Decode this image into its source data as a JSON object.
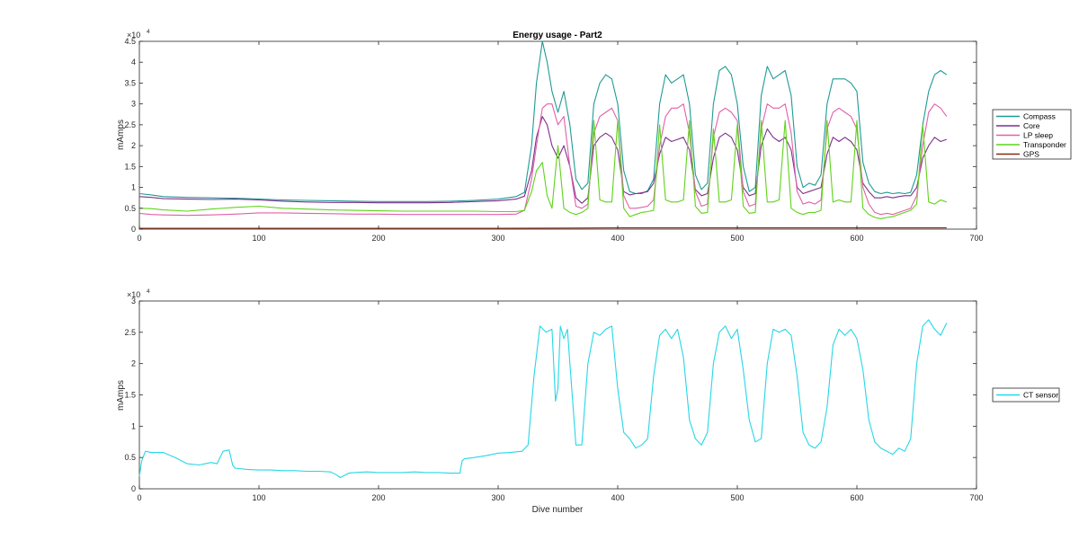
{
  "chart_data": [
    {
      "type": "line",
      "title": "Energy usage - Part2",
      "xlabel": "",
      "ylabel": "mAmps",
      "xlim": [
        0,
        700
      ],
      "ylim": [
        0,
        45000
      ],
      "xticks": [
        0,
        100,
        200,
        300,
        400,
        500,
        600,
        700
      ],
      "xtick_labels": [
        "0",
        "100",
        "200",
        "300",
        "400",
        "500",
        "600",
        "700"
      ],
      "yticks": [
        0,
        5000,
        10000,
        15000,
        20000,
        25000,
        30000,
        35000,
        40000,
        45000
      ],
      "ytick_labels": [
        "0",
        "0.5",
        "1",
        "1.5",
        "2",
        "2.5",
        "3",
        "3.5",
        "4",
        "4.5"
      ],
      "exponent_label": "×10",
      "exponent_power": "4",
      "legend_position": "outside-right",
      "series": [
        {
          "name": "Compass",
          "color": "#1f9a94",
          "x": [
            0,
            10,
            20,
            40,
            60,
            80,
            100,
            120,
            140,
            160,
            180,
            200,
            220,
            240,
            260,
            280,
            300,
            315,
            322,
            328,
            332,
            337,
            341,
            345,
            350,
            355,
            360,
            365,
            370,
            375,
            380,
            385,
            390,
            395,
            400,
            405,
            410,
            415,
            420,
            425,
            430,
            435,
            440,
            445,
            450,
            455,
            460,
            465,
            470,
            475,
            480,
            485,
            490,
            495,
            500,
            505,
            510,
            515,
            520,
            525,
            530,
            535,
            540,
            545,
            550,
            555,
            560,
            565,
            570,
            575,
            580,
            585,
            590,
            595,
            600,
            605,
            610,
            615,
            620,
            625,
            630,
            635,
            640,
            645,
            650,
            655,
            660,
            665,
            670,
            675
          ],
          "y": [
            8500,
            8200,
            7800,
            7600,
            7500,
            7400,
            7200,
            7000,
            6900,
            6800,
            6700,
            6600,
            6600,
            6600,
            6700,
            6900,
            7200,
            7800,
            8800,
            20000,
            35000,
            45000,
            40000,
            33000,
            28000,
            33000,
            25000,
            12000,
            9500,
            11000,
            30000,
            35000,
            37000,
            36000,
            30000,
            14000,
            9000,
            8500,
            8500,
            9200,
            12000,
            30000,
            37000,
            35000,
            36000,
            37000,
            30000,
            13000,
            9500,
            11000,
            30000,
            38000,
            39000,
            37000,
            30000,
            15000,
            9000,
            10000,
            32000,
            39000,
            36000,
            37000,
            38000,
            32000,
            15000,
            10000,
            11000,
            10500,
            13000,
            30000,
            36000,
            36000,
            36000,
            35000,
            33000,
            16000,
            11000,
            9000,
            8500,
            8800,
            8500,
            8700,
            8500,
            8800,
            13000,
            25000,
            33000,
            37000,
            38000,
            37000
          ]
        },
        {
          "name": "Core",
          "color": "#7e2f8e",
          "x": [
            0,
            10,
            20,
            40,
            60,
            80,
            100,
            120,
            140,
            160,
            180,
            200,
            220,
            240,
            260,
            280,
            300,
            315,
            322,
            328,
            332,
            337,
            341,
            345,
            350,
            355,
            360,
            365,
            370,
            375,
            380,
            385,
            390,
            395,
            400,
            405,
            410,
            415,
            420,
            425,
            430,
            435,
            440,
            445,
            450,
            455,
            460,
            465,
            470,
            475,
            480,
            485,
            490,
            495,
            500,
            505,
            510,
            515,
            520,
            525,
            530,
            535,
            540,
            545,
            550,
            555,
            560,
            565,
            570,
            575,
            580,
            585,
            590,
            595,
            600,
            605,
            610,
            615,
            620,
            625,
            630,
            635,
            640,
            645,
            650,
            655,
            660,
            665,
            670,
            675
          ],
          "y": [
            7800,
            7600,
            7300,
            7200,
            7100,
            7200,
            7000,
            6700,
            6500,
            6400,
            6400,
            6300,
            6300,
            6300,
            6400,
            6600,
            6800,
            7200,
            7900,
            14000,
            22000,
            27000,
            25000,
            20000,
            17000,
            20000,
            15000,
            7500,
            6200,
            7500,
            20000,
            22000,
            23000,
            22000,
            19000,
            9000,
            8200,
            8500,
            8700,
            9000,
            11000,
            18000,
            22000,
            21000,
            21500,
            22000,
            19000,
            9500,
            8000,
            8500,
            17000,
            22000,
            23000,
            22000,
            19000,
            10000,
            8000,
            8500,
            20000,
            24000,
            22000,
            21000,
            22000,
            19000,
            10000,
            8500,
            9000,
            9500,
            10000,
            18000,
            22000,
            21000,
            22000,
            21000,
            19000,
            11000,
            9000,
            7500,
            7500,
            7800,
            7500,
            7800,
            8000,
            8000,
            10000,
            17000,
            20000,
            22000,
            21000,
            21500
          ]
        },
        {
          "name": "LP sleep",
          "color": "#e060a8",
          "x": [
            0,
            10,
            20,
            40,
            60,
            80,
            100,
            120,
            140,
            160,
            180,
            200,
            220,
            240,
            260,
            280,
            300,
            315,
            322,
            328,
            332,
            337,
            341,
            345,
            350,
            355,
            360,
            365,
            370,
            375,
            380,
            385,
            390,
            395,
            400,
            405,
            410,
            415,
            420,
            425,
            430,
            435,
            440,
            445,
            450,
            455,
            460,
            465,
            470,
            475,
            480,
            485,
            490,
            495,
            500,
            505,
            510,
            515,
            520,
            525,
            530,
            535,
            540,
            545,
            550,
            555,
            560,
            565,
            570,
            575,
            580,
            585,
            590,
            595,
            600,
            605,
            610,
            615,
            620,
            625,
            630,
            635,
            640,
            645,
            650,
            655,
            660,
            665,
            670,
            675
          ],
          "y": [
            3800,
            3500,
            3400,
            3300,
            3400,
            3600,
            3900,
            3900,
            3800,
            3700,
            3600,
            3600,
            3500,
            3500,
            3500,
            3500,
            3500,
            3600,
            4500,
            12000,
            20000,
            29000,
            30000,
            30000,
            25000,
            27000,
            15000,
            5500,
            5000,
            6000,
            23000,
            27000,
            28000,
            29000,
            26000,
            8000,
            5000,
            5000,
            5200,
            5500,
            7000,
            20000,
            27000,
            29000,
            29000,
            30000,
            23000,
            9000,
            5500,
            6000,
            22000,
            28000,
            29000,
            28000,
            26000,
            9000,
            5500,
            6000,
            24000,
            30000,
            29000,
            29000,
            30000,
            23000,
            9000,
            6000,
            6500,
            6000,
            7000,
            24000,
            28000,
            29000,
            28000,
            27000,
            24000,
            10000,
            6000,
            4000,
            3500,
            3800,
            3500,
            4000,
            4500,
            5000,
            8000,
            20000,
            28000,
            30000,
            29000,
            27000
          ]
        },
        {
          "name": "Transponder",
          "color": "#5fd31a",
          "x": [
            0,
            10,
            20,
            40,
            60,
            80,
            100,
            120,
            140,
            160,
            180,
            200,
            220,
            240,
            260,
            280,
            300,
            315,
            322,
            328,
            332,
            337,
            341,
            345,
            350,
            355,
            360,
            365,
            370,
            375,
            380,
            385,
            390,
            395,
            400,
            405,
            410,
            415,
            420,
            425,
            430,
            435,
            440,
            445,
            450,
            455,
            460,
            465,
            470,
            475,
            480,
            485,
            490,
            495,
            500,
            505,
            510,
            515,
            520,
            525,
            530,
            535,
            540,
            545,
            550,
            555,
            560,
            565,
            570,
            575,
            580,
            585,
            590,
            595,
            600,
            605,
            610,
            615,
            620,
            625,
            630,
            635,
            640,
            645,
            650,
            655,
            660,
            665,
            670,
            675
          ],
          "y": [
            5000,
            4900,
            4600,
            4300,
            4800,
            5200,
            5500,
            5000,
            4800,
            4600,
            4500,
            4400,
            4300,
            4300,
            4300,
            4300,
            4200,
            4200,
            4500,
            9000,
            14000,
            16000,
            8000,
            5000,
            20000,
            5000,
            4000,
            3500,
            4000,
            5000,
            26000,
            7000,
            6500,
            6500,
            26000,
            5000,
            3000,
            3500,
            4000,
            4200,
            4500,
            25000,
            7000,
            6500,
            6500,
            7000,
            26000,
            5500,
            3800,
            4000,
            24000,
            6500,
            6500,
            7000,
            25000,
            5500,
            3800,
            4000,
            26000,
            6500,
            6500,
            7000,
            26000,
            5000,
            4000,
            3500,
            4000,
            4000,
            4500,
            26000,
            6500,
            7000,
            6500,
            6500,
            26000,
            5000,
            3500,
            2800,
            2500,
            2800,
            3000,
            3500,
            4000,
            4500,
            6000,
            25000,
            6500,
            6000,
            7000,
            6500
          ]
        },
        {
          "name": "GPS",
          "color": "#8b2a12",
          "x": [
            0,
            100,
            200,
            300,
            400,
            500,
            600,
            675
          ],
          "y": [
            200,
            200,
            200,
            200,
            300,
            300,
            300,
            300
          ]
        }
      ]
    },
    {
      "type": "line",
      "title": "",
      "xlabel": "Dive number",
      "ylabel": "mAmps",
      "xlim": [
        0,
        700
      ],
      "ylim": [
        0,
        30000
      ],
      "xticks": [
        0,
        100,
        200,
        300,
        400,
        500,
        600,
        700
      ],
      "xtick_labels": [
        "0",
        "100",
        "200",
        "300",
        "400",
        "500",
        "600",
        "700"
      ],
      "yticks": [
        0,
        5000,
        10000,
        15000,
        20000,
        25000,
        30000
      ],
      "ytick_labels": [
        "0",
        "0.5",
        "1",
        "1.5",
        "2",
        "2.5",
        "3"
      ],
      "exponent_label": "×10",
      "exponent_power": "4",
      "legend_position": "outside-right",
      "series": [
        {
          "name": "CT sensor",
          "color": "#26d7e6",
          "x": [
            0,
            2,
            5,
            10,
            20,
            30,
            40,
            50,
            60,
            65,
            70,
            75,
            78,
            80,
            90,
            100,
            110,
            120,
            130,
            140,
            150,
            160,
            165,
            168,
            170,
            175,
            180,
            190,
            200,
            210,
            220,
            230,
            240,
            250,
            260,
            268,
            270,
            272,
            280,
            290,
            300,
            310,
            320,
            325,
            330,
            335,
            340,
            345,
            348,
            350,
            352,
            355,
            358,
            360,
            365,
            370,
            375,
            380,
            385,
            390,
            395,
            400,
            405,
            410,
            415,
            420,
            425,
            430,
            435,
            440,
            445,
            450,
            455,
            460,
            465,
            470,
            475,
            480,
            485,
            490,
            495,
            500,
            505,
            510,
            515,
            520,
            525,
            530,
            535,
            540,
            545,
            550,
            555,
            560,
            565,
            570,
            575,
            580,
            585,
            590,
            595,
            600,
            605,
            610,
            615,
            620,
            625,
            630,
            635,
            640,
            645,
            650,
            655,
            660,
            665,
            670,
            675
          ],
          "y": [
            2000,
            4500,
            6000,
            5800,
            5800,
            5000,
            4000,
            3800,
            4200,
            4000,
            6000,
            6200,
            3800,
            3300,
            3100,
            3000,
            3000,
            2900,
            2900,
            2800,
            2800,
            2700,
            2200,
            1800,
            2000,
            2500,
            2600,
            2700,
            2600,
            2600,
            2600,
            2700,
            2600,
            2600,
            2500,
            2500,
            4500,
            4800,
            5000,
            5300,
            5700,
            5800,
            6000,
            7000,
            18000,
            26000,
            25000,
            25500,
            14000,
            16000,
            26000,
            24000,
            25500,
            20000,
            7000,
            7000,
            20000,
            25000,
            24500,
            25500,
            26000,
            16000,
            9000,
            8000,
            6500,
            7000,
            8000,
            18000,
            24500,
            25500,
            24000,
            25500,
            21000,
            11000,
            8000,
            7000,
            9000,
            20000,
            25000,
            26000,
            24000,
            25500,
            19000,
            11000,
            7500,
            8000,
            20000,
            25500,
            25000,
            25500,
            24500,
            18000,
            9000,
            7000,
            6500,
            7500,
            13000,
            23000,
            25500,
            24500,
            25500,
            24000,
            19000,
            11000,
            7500,
            6500,
            6000,
            5500,
            6500,
            6000,
            8000,
            20000,
            26000,
            27000,
            25500,
            24500,
            26500
          ]
        }
      ]
    }
  ]
}
